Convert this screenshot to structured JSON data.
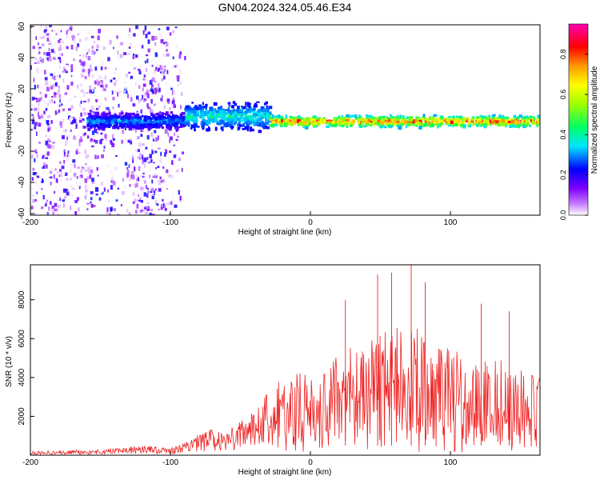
{
  "title": "GN04.2024.324.05.46.E34",
  "chart_data": [
    {
      "type": "heatmap",
      "xlabel": "Height of straight line (km)",
      "ylabel": "Frequency (Hz)",
      "xlim": [
        -200,
        164
      ],
      "ylim": [
        -61,
        61
      ],
      "xticks": [
        -200,
        -100,
        0,
        100
      ],
      "yticks": [
        60,
        40,
        20,
        0,
        -20,
        -40,
        -60
      ],
      "grid": false,
      "colorbar": {
        "label": "Normalized spectral amplitude",
        "range": [
          0,
          0.95
        ],
        "ticks": [
          0.0,
          0.2,
          0.4,
          0.6,
          0.8
        ],
        "colormap": [
          "#ffffff",
          "#7e00ff",
          "#0000ff",
          "#00e5ff",
          "#00ff66",
          "#9dff00",
          "#ffff00",
          "#ff9900",
          "#ff0000",
          "#ff00b0"
        ]
      },
      "regions": [
        {
          "x": [
            -200,
            -90
          ],
          "freq_range": [
            -61,
            61
          ],
          "amplitude": [
            0.0,
            0.25
          ],
          "description_value": "broadband noise"
        },
        {
          "x": [
            -160,
            -90
          ],
          "freq_center": 0,
          "freq_halfwidth": 6,
          "amplitude": [
            0.15,
            0.35
          ]
        },
        {
          "x": [
            -90,
            -30
          ],
          "freq_center": 3,
          "freq_halfwidth": 10,
          "amplitude": [
            0.2,
            0.45
          ]
        },
        {
          "x": [
            -30,
            164
          ],
          "freq_center": 0,
          "freq_halfwidth": 4,
          "amplitude": [
            0.3,
            0.95
          ]
        }
      ]
    },
    {
      "type": "line",
      "xlabel": "Height of straight line (km)",
      "ylabel": "SNR (10 * v/v)",
      "xlim": [
        -200,
        164
      ],
      "ylim": [
        0,
        9800
      ],
      "xticks": [
        -200,
        -100,
        0,
        100
      ],
      "yticks": [
        2000,
        4000,
        6000,
        8000
      ],
      "grid": false,
      "color": "#ee2222",
      "x": [
        -200,
        -190,
        -180,
        -170,
        -160,
        -150,
        -140,
        -130,
        -120,
        -110,
        -100,
        -90,
        -80,
        -70,
        -60,
        -50,
        -40,
        -35,
        -30,
        -25,
        -20,
        -15,
        -10,
        -5,
        0,
        5,
        10,
        15,
        20,
        25,
        30,
        35,
        40,
        45,
        50,
        55,
        60,
        65,
        70,
        75,
        80,
        85,
        90,
        95,
        100,
        105,
        110,
        115,
        120,
        125,
        130,
        135,
        140,
        145,
        150,
        155,
        160,
        164
      ],
      "y": [
        150,
        200,
        180,
        220,
        200,
        250,
        300,
        350,
        400,
        380,
        300,
        500,
        900,
        1100,
        1000,
        1400,
        1800,
        2300,
        2600,
        3000,
        3100,
        3300,
        3400,
        3400,
        3300,
        3500,
        3600,
        3900,
        4200,
        4400,
        4500,
        4600,
        4700,
        4900,
        5100,
        5200,
        5400,
        5600,
        5800,
        5600,
        5200,
        4800,
        4600,
        4600,
        4500,
        4300,
        4200,
        4100,
        4200,
        4300,
        4400,
        4200,
        4000,
        3800,
        3600,
        3400,
        3300,
        3200
      ],
      "peaks": [
        [
          48,
          9300
        ],
        [
          58,
          9400
        ],
        [
          72,
          9800
        ],
        [
          82,
          8900
        ],
        [
          25,
          8000
        ],
        [
          122,
          7800
        ],
        [
          142,
          7400
        ]
      ]
    }
  ]
}
